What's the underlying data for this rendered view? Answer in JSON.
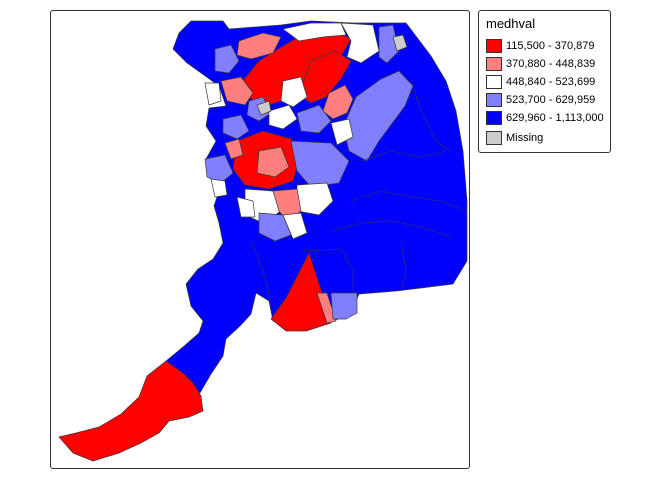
{
  "map": {
    "legend": {
      "title": "medhval",
      "items": [
        {
          "label": "115,500 - 370,879",
          "color": "#ff0000"
        },
        {
          "label": "370,880 - 448,839",
          "color": "#ff7f7f"
        },
        {
          "label": "448,840 - 523,699",
          "color": "#ffffff"
        },
        {
          "label": "523,700 - 629,959",
          "color": "#7f7fff"
        },
        {
          "label": "629,960 - 1,113,000",
          "color": "#0000ff"
        },
        {
          "label": "Missing",
          "color": "#cccccc"
        }
      ]
    }
  }
}
